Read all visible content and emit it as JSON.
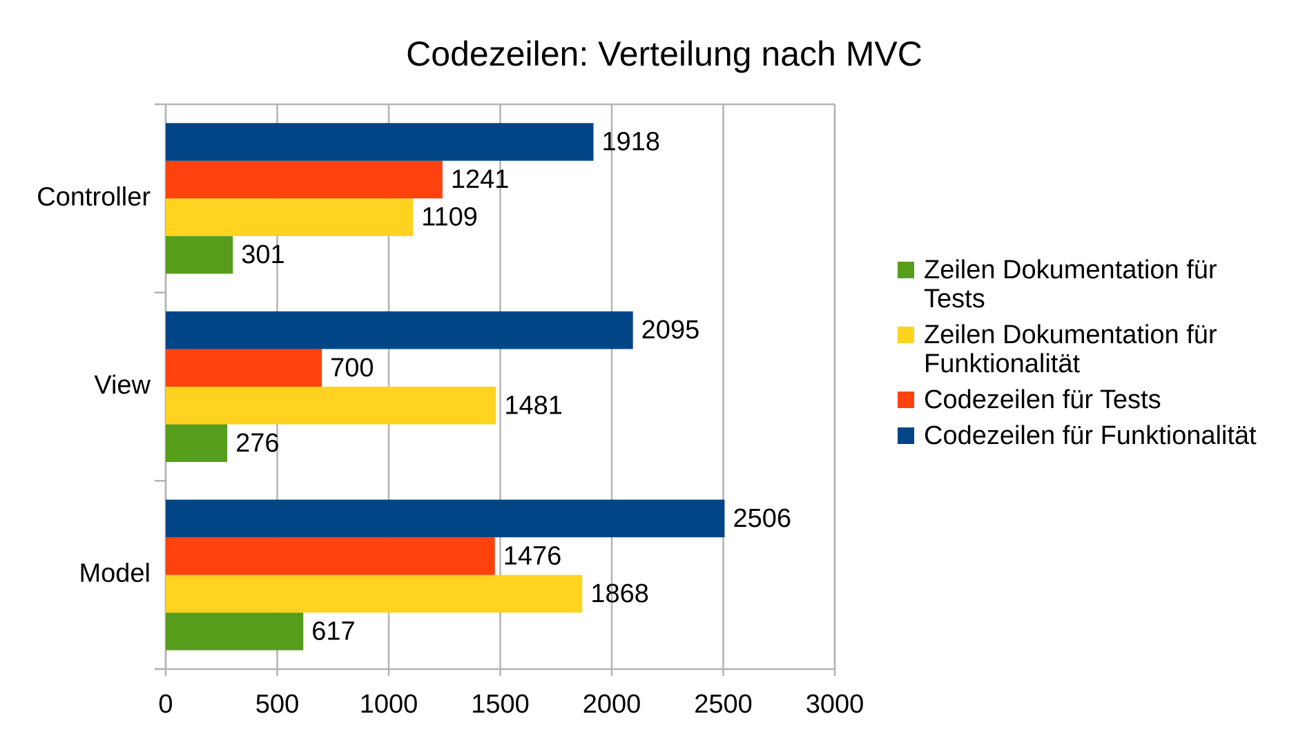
{
  "chart_data": {
    "type": "bar",
    "orientation": "horizontal",
    "title": "Codezeilen: Verteilung nach MVC",
    "categories": [
      "Controller",
      "View",
      "Model"
    ],
    "series": [
      {
        "name": "Zeilen Dokumentation für Tests",
        "color": "#579d1c",
        "values": [
          301,
          276,
          617
        ]
      },
      {
        "name": "Zeilen Dokumentation für Funktionalität",
        "color": "#ffd320",
        "values": [
          1109,
          1481,
          1868
        ]
      },
      {
        "name": "Codezeilen für Tests",
        "color": "#ff420e",
        "values": [
          1241,
          700,
          1476
        ]
      },
      {
        "name": "Codezeilen für Funktionalität",
        "color": "#004586",
        "values": [
          1918,
          2095,
          2506
        ]
      }
    ],
    "xlim": [
      0,
      3000
    ],
    "xticks": [
      0,
      500,
      1000,
      1500,
      2000,
      2500,
      3000
    ],
    "grid": true,
    "legend": "right"
  }
}
